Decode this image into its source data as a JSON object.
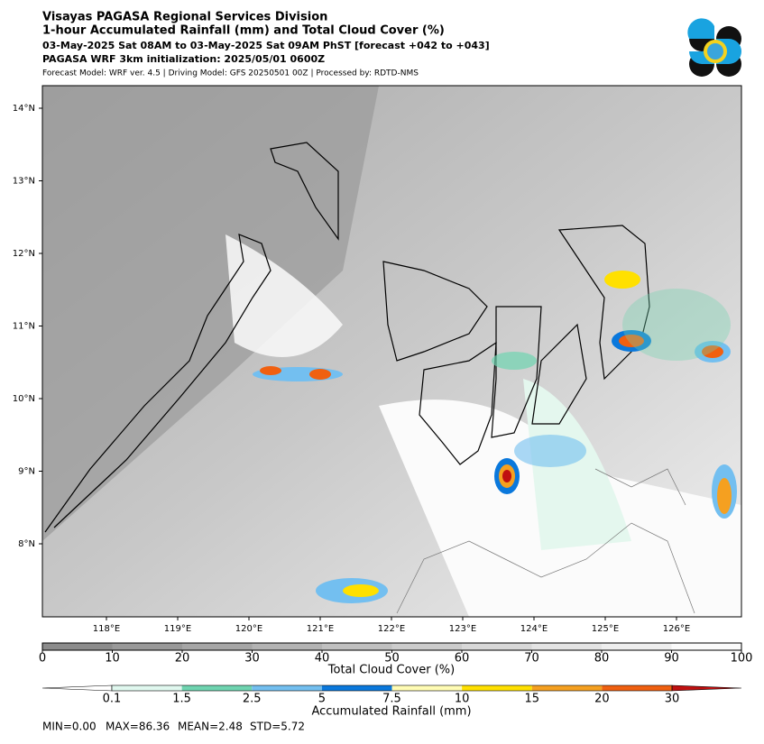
{
  "header": {
    "title": "Visayas PAGASA Regional Services Division",
    "subtitle": "1-hour Accumulated Rainfall (mm) and Total Cloud Cover (%)",
    "valid_time": "03-May-2025 Sat 08AM to 03-May-2025 Sat 09AM PhST [forecast +042 to +043]",
    "initialization": "PAGASA WRF 3km initialization: 2025/05/01 0600Z",
    "model_info": "Forecast Model: WRF ver. 4.5 | Driving Model: GFS 20250501 00Z | Processed by: RDTD-NMS"
  },
  "map": {
    "lat_labels": [
      "14°N",
      "13°N",
      "12°N",
      "11°N",
      "10°N",
      "9°N",
      "8°N"
    ],
    "lon_labels": [
      "118°E",
      "119°E",
      "120°E",
      "121°E",
      "122°E",
      "123°E",
      "124°E",
      "125°E",
      "126°E"
    ]
  },
  "cloud_colorbar": {
    "label": "Total Cloud Cover (%)",
    "ticks": [
      "0",
      "10",
      "20",
      "30",
      "40",
      "50",
      "60",
      "70",
      "80",
      "90",
      "100"
    ]
  },
  "rain_colorbar": {
    "label": "Accumulated Rainfall (mm)",
    "ticks": [
      "0.1",
      "1.5",
      "2.5",
      "5",
      "7.5",
      "10",
      "15",
      "20",
      "30"
    ]
  },
  "stats": [
    "MIN=0.00",
    "MAX=86.36",
    "MEAN=2.48",
    "STD=5.72"
  ]
}
